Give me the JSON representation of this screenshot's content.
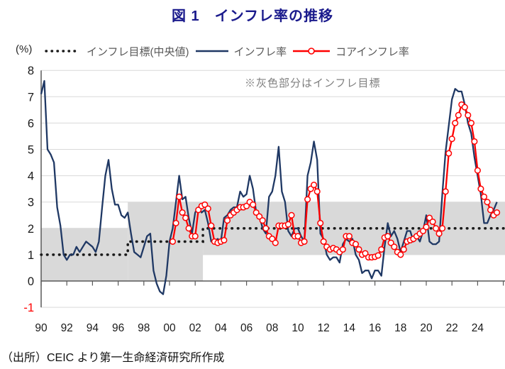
{
  "title": "図 1　インフレ率の推移",
  "y_axis_unit": "(%)",
  "annotation": "※灰色部分はインフレ目標",
  "source": "（出所）CEIC より第一生命経済研究所作成",
  "legend": [
    {
      "label": "インフレ目標(中央値)",
      "style": "dotted",
      "color": "#1a1a1a"
    },
    {
      "label": "インフレ率",
      "style": "solid",
      "color": "#1f3864"
    },
    {
      "label": "コアインフレ率",
      "style": "solid-marker",
      "color": "#ff0000"
    }
  ],
  "colors": {
    "title": "#1a1a8c",
    "band": "#d9d9d9",
    "grid": "#d9d9d9",
    "axis": "#595959",
    "tick_text": "#1a1a1a",
    "negative_tick_text": "#ff0000",
    "target_dotted": "#1a1a1a",
    "inflation_line": "#1f3864",
    "core_line": "#ff0000",
    "marker_fill": "#ffffff",
    "legend_text": "#595959",
    "annotation_text": "#808080"
  },
  "chart_data": {
    "type": "line",
    "title": "図 1　インフレ率の推移",
    "ylabel": "(%)",
    "ylim": [
      -1,
      8
    ],
    "grid": "horizontal",
    "legend_position": "top",
    "y_ticks": [
      8,
      7,
      6,
      5,
      4,
      3,
      2,
      1,
      0,
      -1
    ],
    "x_range_years": [
      1990,
      2026.2
    ],
    "x_labels": [
      {
        "year": 1990,
        "label": "90"
      },
      {
        "year": 1992,
        "label": "92"
      },
      {
        "year": 1994,
        "label": "94"
      },
      {
        "year": 1996,
        "label": "96"
      },
      {
        "year": 1998,
        "label": "98"
      },
      {
        "year": 2000,
        "label": "00"
      },
      {
        "year": 2002,
        "label": "02"
      },
      {
        "year": 2004,
        "label": "04"
      },
      {
        "year": 2006,
        "label": "06"
      },
      {
        "year": 2008,
        "label": "08"
      },
      {
        "year": 2010,
        "label": "10"
      },
      {
        "year": 2012,
        "label": "12"
      },
      {
        "year": 2014,
        "label": "14"
      },
      {
        "year": 2016,
        "label": "16"
      },
      {
        "year": 2018,
        "label": "18"
      },
      {
        "year": 2020,
        "label": "20"
      },
      {
        "year": 2022,
        "label": "22"
      },
      {
        "year": 2024,
        "label": "24"
      }
    ],
    "target_band_segments": [
      {
        "x1": 1990.0,
        "x2": 1996.75,
        "lo": 0,
        "hi": 2
      },
      {
        "x1": 1996.75,
        "x2": 2002.6,
        "lo": 0,
        "hi": 3
      },
      {
        "x1": 2002.6,
        "x2": 2026.2,
        "lo": 1,
        "hi": 3
      }
    ],
    "target_median_segments": [
      {
        "x1": 1990.0,
        "x2": 1996.75,
        "y": 1.0
      },
      {
        "x1": 1996.75,
        "x2": 2002.6,
        "y": 1.5
      },
      {
        "x1": 2002.6,
        "x2": 2026.2,
        "y": 2.0
      }
    ],
    "series": [
      {
        "name": "インフレ率",
        "frequency": "quarterly",
        "x_start": 1990.0,
        "x_step": 0.25,
        "values": [
          7.1,
          7.6,
          5.0,
          4.8,
          4.5,
          2.8,
          2.1,
          1.0,
          0.8,
          1.0,
          1.0,
          1.3,
          1.1,
          1.3,
          1.5,
          1.4,
          1.3,
          1.1,
          1.5,
          2.8,
          4.0,
          4.6,
          3.5,
          2.9,
          2.9,
          2.5,
          2.4,
          2.6,
          1.8,
          1.1,
          1.0,
          0.9,
          1.3,
          1.7,
          1.8,
          0.4,
          -0.1,
          -0.4,
          -0.5,
          0.2,
          1.5,
          2.0,
          3.0,
          4.0,
          3.1,
          3.2,
          2.4,
          1.8,
          2.6,
          2.8,
          2.6,
          2.7,
          2.2,
          1.5,
          1.5,
          1.6,
          1.5,
          2.4,
          2.5,
          2.7,
          2.8,
          2.8,
          3.4,
          3.2,
          3.3,
          4.0,
          3.5,
          2.6,
          2.5,
          2.0,
          1.8,
          3.2,
          3.4,
          4.0,
          5.1,
          3.4,
          3.0,
          1.9,
          1.7,
          2.0,
          2.0,
          1.7,
          1.5,
          4.0,
          4.5,
          5.3,
          4.6,
          1.8,
          1.6,
          1.0,
          0.8,
          0.9,
          0.9,
          0.7,
          1.4,
          1.6,
          1.5,
          1.6,
          1.0,
          0.8,
          0.3,
          0.4,
          0.4,
          0.1,
          0.4,
          0.4,
          0.2,
          1.3,
          2.2,
          1.7,
          1.9,
          1.6,
          1.1,
          1.5,
          1.9,
          1.9,
          1.5,
          1.7,
          1.5,
          1.9,
          2.5,
          1.5,
          1.4,
          1.4,
          1.5,
          3.3,
          4.9,
          5.9,
          6.9,
          7.3,
          7.2,
          7.2,
          6.7,
          6.0,
          5.6,
          4.7,
          4.0,
          3.3,
          2.2,
          2.2,
          2.5,
          2.7,
          3.0
        ]
      },
      {
        "name": "コアインフレ率",
        "frequency": "quarterly",
        "x_start": 2000.25,
        "x_step": 0.25,
        "values": [
          1.5,
          2.2,
          3.2,
          2.6,
          2.4,
          2.0,
          1.7,
          1.7,
          2.7,
          2.85,
          2.9,
          2.75,
          2.1,
          1.5,
          1.45,
          1.5,
          1.55,
          2.3,
          2.5,
          2.6,
          2.7,
          2.8,
          2.8,
          2.85,
          3.0,
          2.9,
          2.6,
          2.45,
          2.3,
          2.0,
          1.7,
          1.6,
          1.45,
          2.1,
          2.1,
          2.1,
          2.15,
          2.5,
          1.7,
          1.7,
          1.45,
          1.5,
          3.1,
          3.5,
          3.65,
          3.4,
          2.2,
          1.5,
          1.3,
          1.2,
          1.25,
          1.2,
          1.1,
          1.2,
          1.7,
          1.7,
          1.45,
          1.4,
          1.2,
          1.0,
          1.05,
          0.9,
          0.9,
          0.92,
          0.97,
          1.2,
          1.65,
          1.7,
          1.45,
          1.3,
          1.1,
          1.0,
          1.2,
          1.5,
          1.55,
          1.6,
          1.7,
          1.8,
          1.9,
          2.05,
          2.4,
          2.25,
          2.0,
          1.8,
          2.0,
          3.4,
          4.85,
          5.4,
          6.0,
          6.3,
          6.7,
          6.6,
          6.3,
          6.0,
          5.3,
          4.2,
          3.5,
          3.2,
          3.0,
          2.7,
          2.5,
          2.6
        ]
      }
    ]
  }
}
